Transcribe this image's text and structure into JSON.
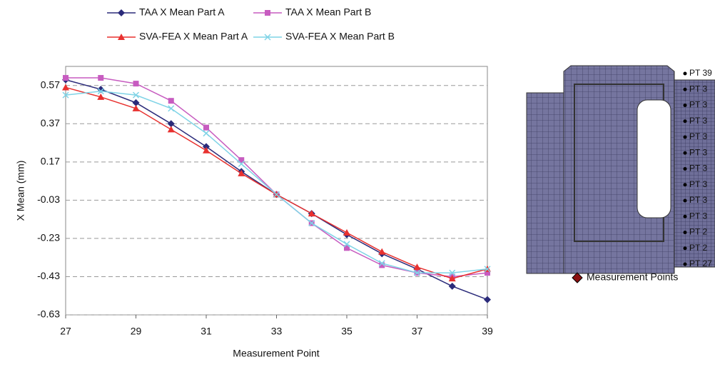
{
  "chart_data": {
    "type": "line",
    "x_label": "Measurement Point",
    "y_label": "X Mean (mm)",
    "x": [
      27,
      28,
      29,
      30,
      31,
      32,
      33,
      34,
      35,
      36,
      37,
      38,
      39
    ],
    "series": [
      {
        "name": "TAA X Mean Part A",
        "color": "#2b2b7a",
        "marker": "diamond",
        "values": [
          0.6,
          0.55,
          0.48,
          0.37,
          0.25,
          0.12,
          0.0,
          -0.1,
          -0.21,
          -0.31,
          -0.39,
          -0.48,
          -0.55
        ]
      },
      {
        "name": "TAA X Mean Part B",
        "color": "#c75cc0",
        "marker": "square",
        "values": [
          0.61,
          0.61,
          0.58,
          0.49,
          0.35,
          0.18,
          0.0,
          -0.15,
          -0.28,
          -0.37,
          -0.41,
          -0.43,
          -0.41
        ]
      },
      {
        "name": "SVA-FEA X Mean Part A",
        "color": "#e8312f",
        "marker": "triangle",
        "values": [
          0.56,
          0.51,
          0.45,
          0.34,
          0.23,
          0.11,
          0.0,
          -0.1,
          -0.2,
          -0.3,
          -0.38,
          -0.44,
          -0.39
        ]
      },
      {
        "name": "SVA-FEA X Mean Part B",
        "color": "#7fd3e6",
        "marker": "x",
        "values": [
          0.52,
          0.54,
          0.52,
          0.45,
          0.32,
          0.16,
          0.0,
          -0.15,
          -0.26,
          -0.36,
          -0.41,
          -0.41,
          -0.39
        ]
      }
    ],
    "xlim": [
      27,
      39
    ],
    "xticks": [
      27,
      29,
      31,
      33,
      35,
      37,
      39
    ],
    "ylim": [
      -0.63,
      0.67
    ],
    "yticks": [
      -0.63,
      -0.43,
      -0.23,
      -0.03,
      0.17,
      0.37,
      0.57
    ],
    "grid": true
  },
  "figure": {
    "point_labels": [
      "PT 39",
      "PT 3",
      "PT 3",
      "PT 3",
      "PT 3",
      "PT 3",
      "PT 3",
      "PT 3",
      "PT 3",
      "PT 3",
      "PT 2",
      "PT 2",
      "PT 27"
    ],
    "legend": "Measurement Points"
  }
}
